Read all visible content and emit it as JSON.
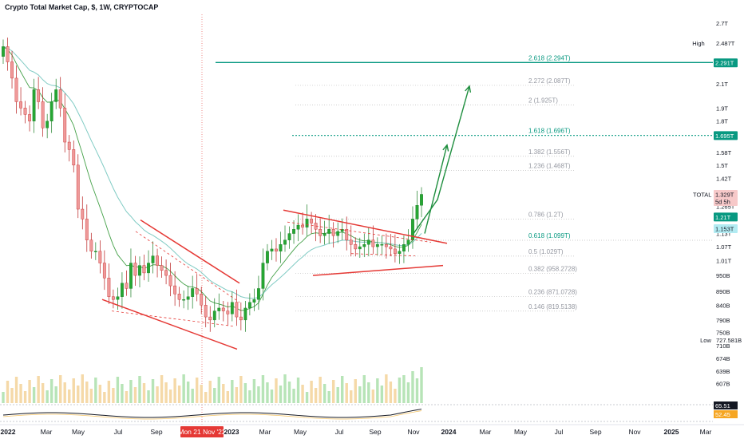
{
  "chart_data": {
    "type": "candlestick",
    "title": "Crypto Total Market Cap, $, 1W, CRYPTOCAP",
    "symbol": "TOTAL",
    "interval": "1W",
    "y_scale": "log",
    "ylim": [
      560,
      2800
    ],
    "y_ticks": [
      {
        "value": 2700,
        "label": "2.7T"
      },
      {
        "value": 2487,
        "label": "2.487T"
      },
      {
        "value": 2100,
        "label": "2.1T"
      },
      {
        "value": 1900,
        "label": "1.9T"
      },
      {
        "value": 1800,
        "label": "1.8T"
      },
      {
        "value": 1580,
        "label": "1.58T"
      },
      {
        "value": 1500,
        "label": "1.5T"
      },
      {
        "value": 1420,
        "label": "1.42T"
      },
      {
        "value": 1265,
        "label": "1.265T"
      },
      {
        "value": 1130,
        "label": "1.13T"
      },
      {
        "value": 1070,
        "label": "1.07T"
      },
      {
        "value": 1010,
        "label": "1.01T"
      },
      {
        "value": 950,
        "label": "950B"
      },
      {
        "value": 890,
        "label": "890B"
      },
      {
        "value": 840,
        "label": "840B"
      },
      {
        "value": 790,
        "label": "790B"
      },
      {
        "value": 750,
        "label": "750B"
      },
      {
        "value": 710,
        "label": "710B"
      },
      {
        "value": 674,
        "label": "674B"
      },
      {
        "value": 639,
        "label": "639B"
      },
      {
        "value": 607,
        "label": "607B"
      }
    ],
    "x_ticks": [
      "2022",
      "Mar",
      "May",
      "Jul",
      "Sep",
      "Mon 21 Nov '22",
      "2023",
      "Mar",
      "May",
      "Jul",
      "Sep",
      "Nov",
      "2024",
      "Mar",
      "May",
      "Jul",
      "Sep",
      "Nov",
      "2025",
      "Mar"
    ],
    "crosshair_date": "Mon 21 Nov '22",
    "high": {
      "label": "High",
      "value": "2.487T"
    },
    "low": {
      "label": "Low",
      "value": "727.581B"
    },
    "price_badges": [
      {
        "text": "TOTAL",
        "color": "#ffffff",
        "text_color": "#131722"
      },
      {
        "text": "1.329T",
        "color": "#f7c9c9",
        "text_color": "#131722"
      },
      {
        "text": "5d 5h",
        "color": "#f7c9c9",
        "text_color": "#131722"
      },
      {
        "text": "2.291T",
        "color": "#089981",
        "text_color": "#ffffff"
      },
      {
        "text": "1.695T",
        "color": "#089981",
        "text_color": "#ffffff"
      },
      {
        "text": "1.21T",
        "color": "#089981",
        "text_color": "#ffffff"
      },
      {
        "text": "1.153T",
        "color": "#b2ebf2",
        "text_color": "#131722"
      }
    ],
    "fib_levels": [
      {
        "ratio": 2.618,
        "value": 2294,
        "label": "2.618 (2.294T)",
        "style": "solid"
      },
      {
        "ratio": 2.272,
        "value": 2087,
        "label": "2.272 (2.087T)",
        "style": "dotted"
      },
      {
        "ratio": 2.0,
        "value": 1925,
        "label": "2 (1.925T)",
        "style": "dotted"
      },
      {
        "ratio": 1.618,
        "value": 1696,
        "label": "1.618 (1.696T)",
        "style": "dotted"
      },
      {
        "ratio": 1.382,
        "value": 1556,
        "label": "1.382 (1.556T)",
        "style": "dotted"
      },
      {
        "ratio": 1.236,
        "value": 1468,
        "label": "1.236 (1.468T)",
        "style": "dotted"
      },
      {
        "ratio": 0.786,
        "value": 1200,
        "label": "0.786 (1.2T)",
        "style": "dotted"
      },
      {
        "ratio": 0.618,
        "value": 1099,
        "label": "0.618 (1.099T)",
        "style": "dotted"
      },
      {
        "ratio": 0.5,
        "value": 1029,
        "label": "0.5 (1.029T)",
        "style": "dotted"
      },
      {
        "ratio": 0.382,
        "value": 958.2728,
        "label": "0.382 (958.2728)",
        "style": "dotted"
      },
      {
        "ratio": 0.236,
        "value": 871.0728,
        "label": "0.236 (871.0728)",
        "style": "dotted"
      },
      {
        "ratio": 0.146,
        "value": 819.5138,
        "label": "0.146 (819.5138)",
        "style": "dotted"
      }
    ],
    "series": [
      {
        "name": "TOTAL",
        "kind": "candles",
        "approx_closes": [
          2450,
          2300,
          2150,
          1950,
          1900,
          1850,
          1800,
          2050,
          1950,
          1750,
          1800,
          1950,
          2050,
          1900,
          1650,
          1600,
          1500,
          1250,
          1200,
          1100,
          1050,
          1050,
          1000,
          940,
          870,
          860,
          870,
          920,
          900,
          1000,
          950,
          990,
          960,
          1000,
          1030,
          990,
          970,
          950,
          910,
          880,
          860,
          860,
          870,
          900,
          880,
          840,
          800,
          790,
          820,
          830,
          820,
          810,
          850,
          800,
          790,
          830,
          850,
          860,
          900,
          1000,
          1050,
          1060,
          1050,
          1080,
          1100,
          1130,
          1150,
          1170,
          1160,
          1200,
          1180,
          1150,
          1120,
          1130,
          1150,
          1120,
          1140,
          1150,
          1100,
          1080,
          1060,
          1070,
          1080,
          1100,
          1070,
          1080,
          1080,
          1070,
          1060,
          1040,
          1050,
          1080,
          1100,
          1200,
          1270,
          1329
        ]
      },
      {
        "name": "MA",
        "kind": "line"
      },
      {
        "name": "RSI",
        "kind": "oscillator",
        "last_values": [
          "65.51",
          "52.45"
        ]
      }
    ]
  }
}
